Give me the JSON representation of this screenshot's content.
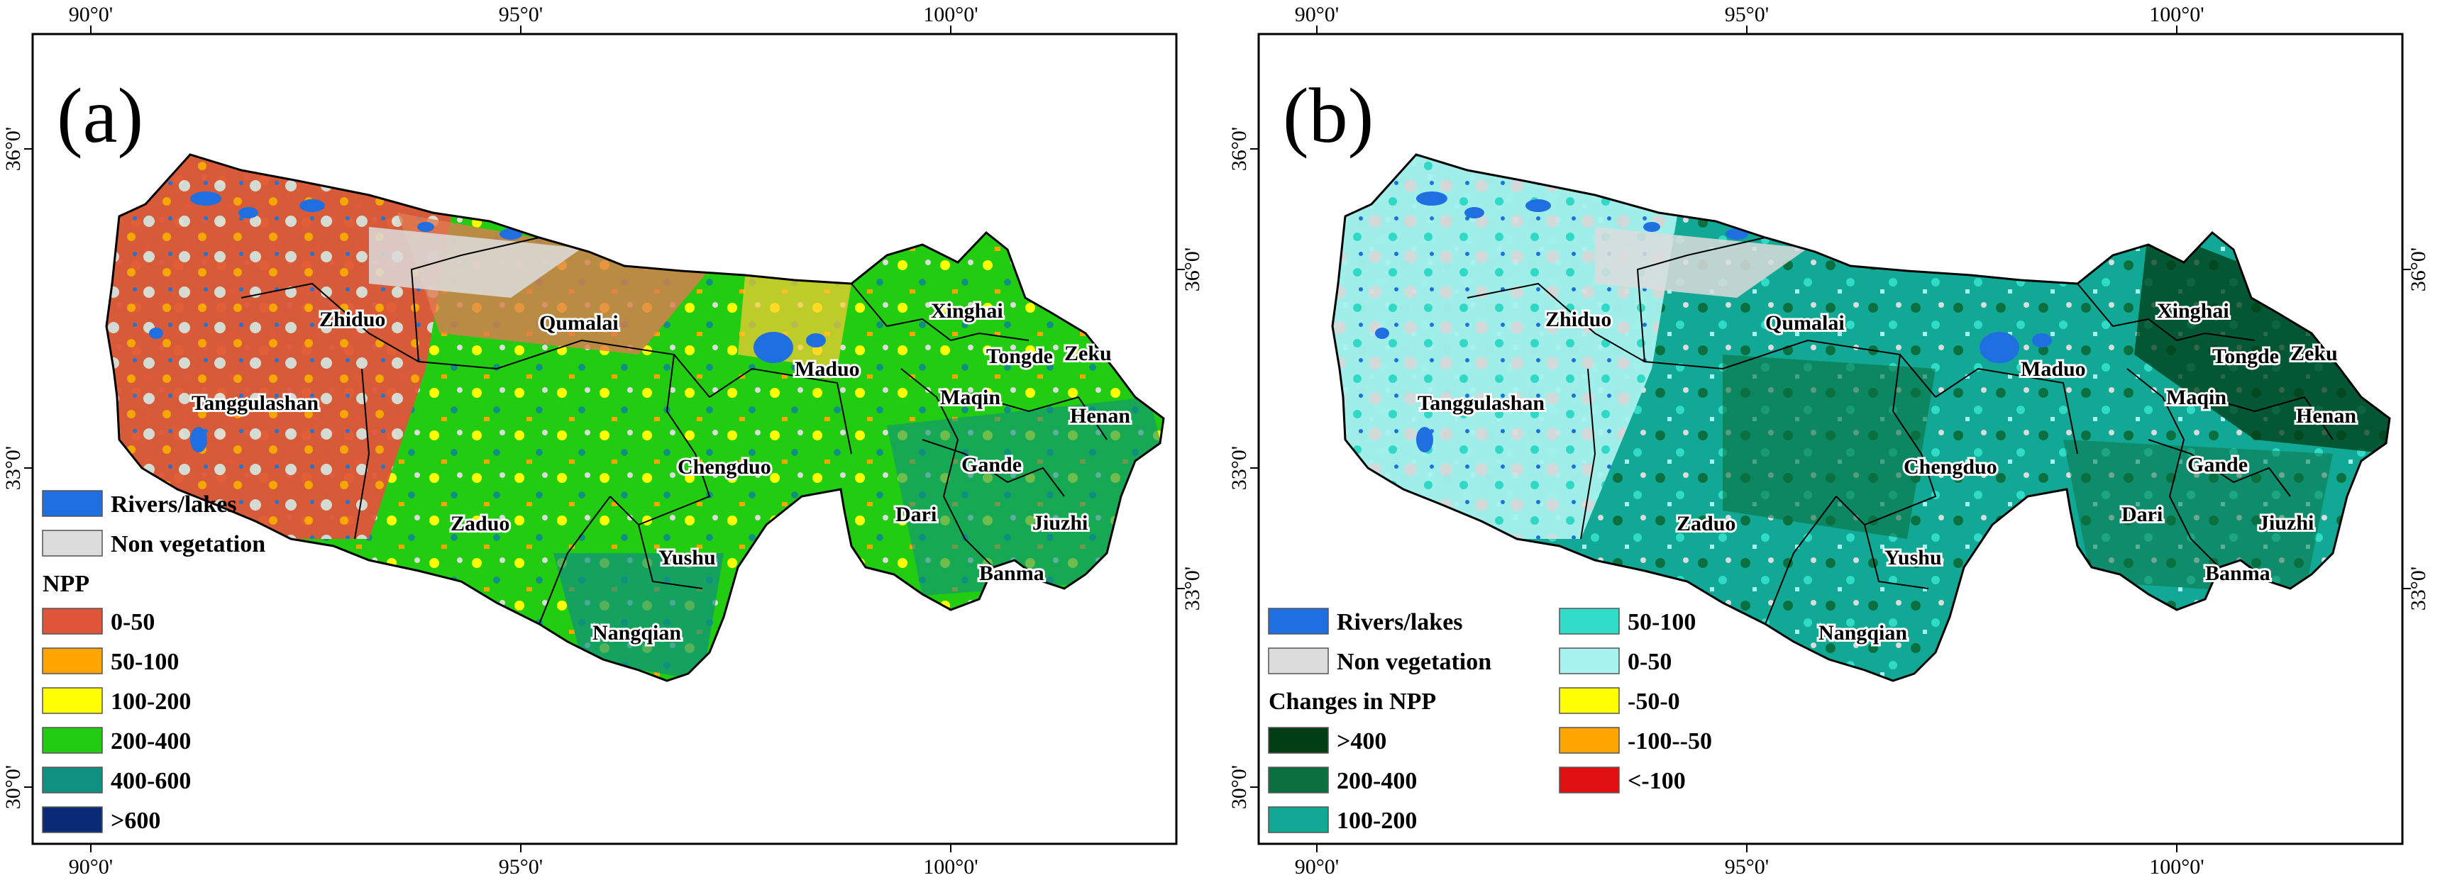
{
  "figure": {
    "panels": [
      {
        "letter": "(a)",
        "top_ticks": [
          "90°0'",
          "95°0'",
          "100°0'"
        ],
        "bottom_ticks": [
          "90°0'",
          "95°0'",
          "100°0'"
        ],
        "left_ticks": [
          "36°0'",
          "33°0'",
          "30°0'"
        ],
        "right_ticks": [
          "36°0'",
          "33°0'"
        ],
        "counties": [
          "Zhiduo",
          "Qumalai",
          "Tanggulashan",
          "Maduo",
          "Xinghai",
          "Tongde",
          "Zeku",
          "Maqin",
          "Henan",
          "Chengduo",
          "Gande",
          "Dari",
          "Jiuzhi",
          "Zaduo",
          "Yushu",
          "Banma",
          "Nangqian"
        ],
        "legend": {
          "base": [
            {
              "label": "Rivers/lakes",
              "color": "#1f6fe0"
            },
            {
              "label": "Non vegetation",
              "color": "#dcdcdc"
            }
          ],
          "title": "NPP",
          "classes": [
            {
              "label": "0-50",
              "color": "#e0553a"
            },
            {
              "label": "50-100",
              "color": "#ffa500"
            },
            {
              "label": "100-200",
              "color": "#ffff00"
            },
            {
              "label": "200-400",
              "color": "#22cc11"
            },
            {
              "label": "400-600",
              "color": "#109080"
            },
            {
              "label": ">600",
              "color": "#0a2a78"
            }
          ]
        }
      },
      {
        "letter": "(b)",
        "top_ticks": [
          "90°0'",
          "95°0'",
          "100°0'"
        ],
        "bottom_ticks": [
          "90°0'",
          "95°0'",
          "100°0'"
        ],
        "left_ticks": [
          "36°0'",
          "33°0'",
          "30°0'"
        ],
        "right_ticks": [
          "36°0'",
          "33°0'"
        ],
        "counties": [
          "Zhiduo",
          "Qumalai",
          "Tanggulashan",
          "Maduo",
          "Xinghai",
          "Tongde",
          "Zeku",
          "Maqin",
          "Henan",
          "Chengduo",
          "Gande",
          "Dari",
          "Jiuzhi",
          "Zaduo",
          "Yushu",
          "Banma",
          "Nangqian"
        ],
        "legend": {
          "base": [
            {
              "label": "Rivers/lakes",
              "color": "#1f6fe0"
            },
            {
              "label": "Non vegetation",
              "color": "#dcdcdc"
            }
          ],
          "title": "Changes in NPP",
          "classes": [
            {
              "label": ">400",
              "color": "#003c14"
            },
            {
              "label": "200-400",
              "color": "#0a7040"
            },
            {
              "label": "100-200",
              "color": "#12a896"
            },
            {
              "label": "50-100",
              "color": "#30dcc8"
            },
            {
              "label": "0-50",
              "color": "#a6f2ee"
            },
            {
              "label": "-50-0",
              "color": "#ffff00"
            },
            {
              "label": "-100--50",
              "color": "#ffa500"
            },
            {
              "label": "<-100",
              "color": "#e01010"
            }
          ]
        }
      }
    ]
  }
}
